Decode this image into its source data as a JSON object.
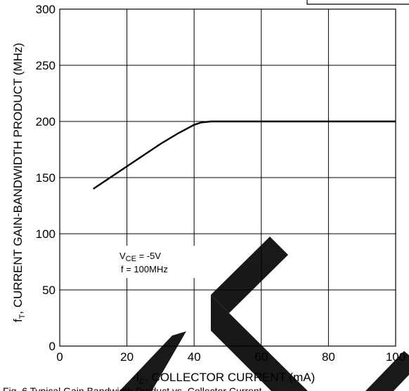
{
  "chart_data": {
    "type": "line",
    "title": "",
    "xlabel": {
      "prefix": "-I",
      "sub": "C",
      "suffix": ", COLLECTOR CURRENT (mA)"
    },
    "ylabel": {
      "prefix": "f",
      "sub": "T",
      "suffix": ", CURRENT GAIN-BANDWIDTH PRODUCT (MHz)"
    },
    "xlim": [
      0,
      100
    ],
    "ylim": [
      0,
      300
    ],
    "x_ticks": [
      0,
      20,
      40,
      60,
      80,
      100
    ],
    "y_ticks": [
      0,
      50,
      100,
      150,
      200,
      250,
      300
    ],
    "x_tick_labels": [
      "0",
      "20",
      "40",
      "60",
      "80",
      "100"
    ],
    "y_tick_labels": [
      "0",
      "50",
      "100",
      "150",
      "200",
      "250",
      "300"
    ],
    "grid": true,
    "line_color": "#000000",
    "series": [
      {
        "x": [
          10,
          15,
          20,
          25,
          30,
          35,
          40,
          42,
          45,
          50,
          60,
          80,
          100
        ],
        "y": [
          140,
          150,
          160,
          170,
          180,
          189,
          197,
          199,
          200,
          200,
          200,
          200,
          200
        ]
      }
    ],
    "annotation": {
      "line1": {
        "prefix": "V",
        "sub": "CE",
        "suffix": " = -5V"
      },
      "line2": "f = 100MHz"
    },
    "caption": "Fig. 6 Typical Gain Bandwidth Product vs. Collector Current"
  }
}
